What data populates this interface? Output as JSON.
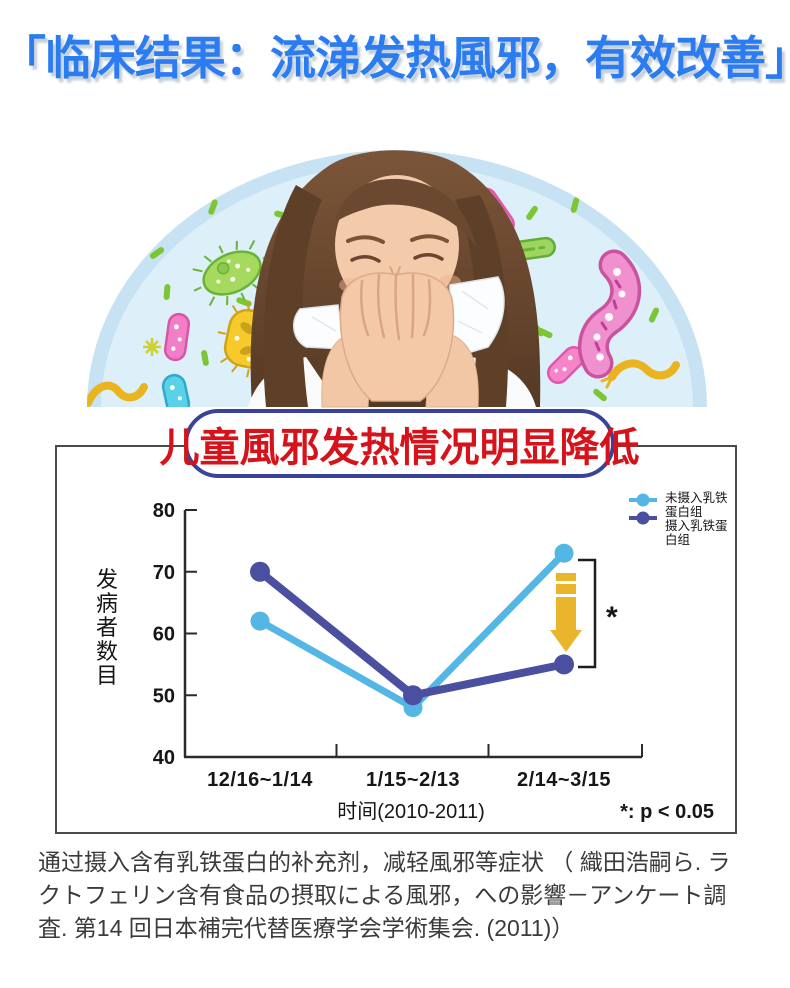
{
  "header": {
    "title": "「临床结果：流涕发热風邪，有效改善」"
  },
  "chart_data": {
    "type": "line",
    "title": "儿童風邪发热情况明显降低",
    "categories": [
      "12/16~1/14",
      "1/15~2/13",
      "2/14~3/15"
    ],
    "series": [
      {
        "name": "未摄入乳铁蛋白组",
        "values": [
          62,
          48,
          73
        ],
        "color": "#54b6e4"
      },
      {
        "name": "摄入乳铁蛋白组",
        "values": [
          70,
          50,
          55
        ],
        "color": "#4a4f9f"
      }
    ],
    "xlabel": "时间(2010-2011)",
    "ylabel": "发病者数目",
    "ylabel_chars": [
      "发",
      "病",
      "者",
      "数",
      "目"
    ],
    "ylim": [
      40,
      80
    ],
    "yticks": [
      80,
      70,
      60,
      50,
      40
    ],
    "grid": false,
    "legend_position": "top-right",
    "legend_lines": [
      [
        "未摄入乳铁",
        "蛋白组"
      ],
      [
        "摄入乳铁蛋",
        "白组"
      ]
    ],
    "significance_marker": "*",
    "significance_note": "*: p < 0.05",
    "annotation_arrow_color": "#e9b52a"
  },
  "footer": {
    "lines": [
      "通过摄入含有乳铁蛋白的补充剂，减轻風邪等症状 （ 織田浩嗣ら. ラ",
      "クトフェリン含有食品の摂取による風邪，への影響－アンケート調",
      "査. 第14 回日本補完代替医療学会学術集会. (2011)）"
    ]
  }
}
